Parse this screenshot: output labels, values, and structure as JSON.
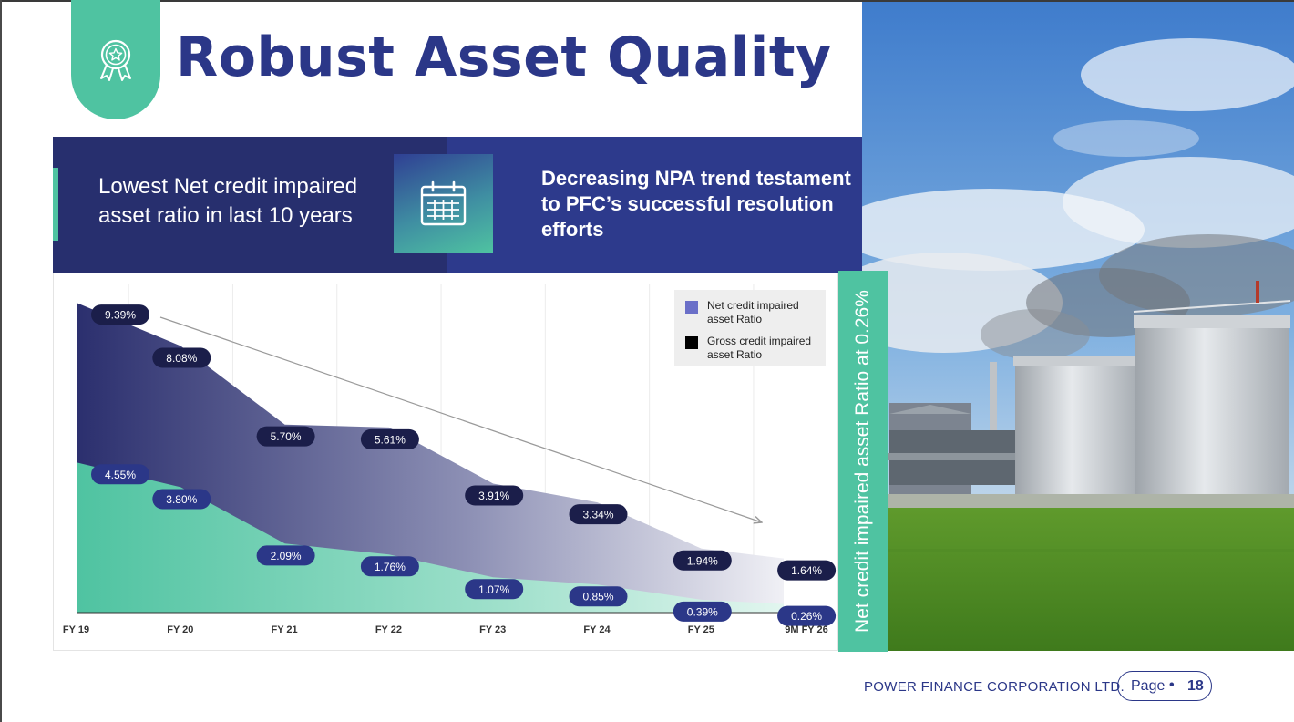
{
  "slide": {
    "title": "Robust Asset Quality",
    "banner_left_text": "Lowest Net credit impaired asset ratio in last 10 years",
    "banner_right_text": "Decreasing NPA trend testament to PFC’s successful resolution efforts",
    "vertical_caption": "Net credit impaired asset Ratio at 0.26%",
    "icons": {
      "badge": "award-ribbon-icon",
      "banner": "calendar-icon"
    },
    "colors": {
      "navy": "#272f6e",
      "blue": "#2d3a8c",
      "teal": "#4fc3a1",
      "title": "#2b3788"
    }
  },
  "footer": {
    "company": "POWER FINANCE CORPORATION LTD.",
    "page_label": "Page",
    "page_sep": "•",
    "page_number": "18"
  },
  "chart_data": {
    "type": "area",
    "categories": [
      "FY 19",
      "FY 20",
      "FY 21",
      "FY 22",
      "FY 23",
      "FY 24",
      "FY 25",
      "9M FY 26"
    ],
    "series": [
      {
        "name": "Net credit impaired asset Ratio",
        "color": "#6a6fc8",
        "values": [
          4.55,
          3.8,
          2.09,
          1.76,
          1.07,
          0.85,
          0.39,
          0.26
        ],
        "labels": [
          "4.55%",
          "3.80%",
          "2.09%",
          "1.76%",
          "1.07%",
          "0.85%",
          "0.39%",
          "0.26%"
        ]
      },
      {
        "name": "Gross credit impaired asset Ratio",
        "color": "#000000",
        "values": [
          9.39,
          8.08,
          5.7,
          5.61,
          3.91,
          3.34,
          1.94,
          1.64
        ],
        "labels": [
          "9.39%",
          "8.08%",
          "5.70%",
          "5.61%",
          "3.91%",
          "3.34%",
          "1.94%",
          "1.64%"
        ]
      }
    ],
    "ylim": [
      0,
      10
    ],
    "grid": true,
    "legend_position": "top-right",
    "trend_arrow": "decreasing"
  }
}
